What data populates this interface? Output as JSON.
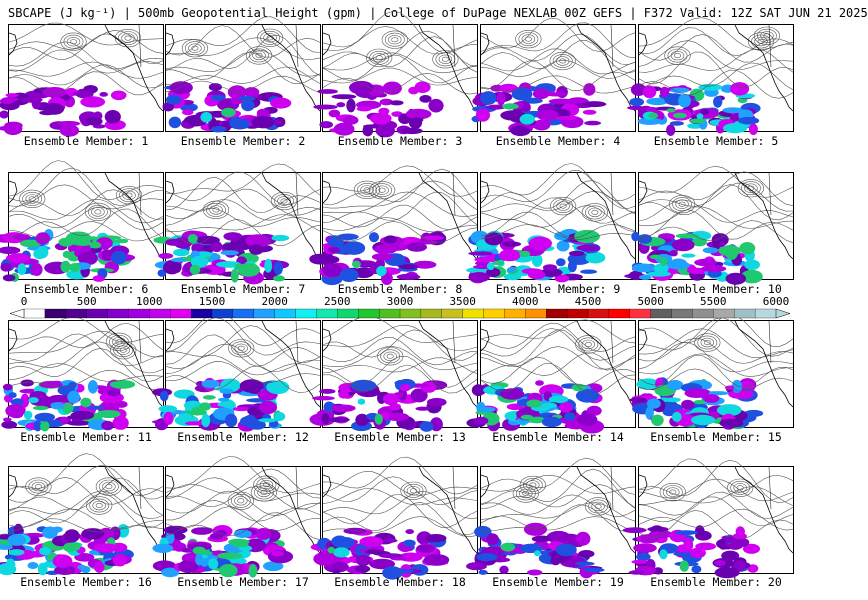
{
  "title": "SBCAPE (J kg⁻¹) | 500mb Geopotential Height (gpm) | College of DuPage NEXLAB 00Z GEFS | F372 Valid: 12Z SAT JUN 21 2025",
  "label_prefix": "Ensemble Member: ",
  "members": [
    {
      "number": "1",
      "cape": "low"
    },
    {
      "number": "2",
      "cape": "medium"
    },
    {
      "number": "3",
      "cape": "low"
    },
    {
      "number": "4",
      "cape": "medium"
    },
    {
      "number": "5",
      "cape": "high"
    },
    {
      "number": "6",
      "cape": "high"
    },
    {
      "number": "7",
      "cape": "high"
    },
    {
      "number": "8",
      "cape": "medium"
    },
    {
      "number": "9",
      "cape": "high"
    },
    {
      "number": "10",
      "cape": "high"
    },
    {
      "number": "11",
      "cape": "high"
    },
    {
      "number": "12",
      "cape": "high"
    },
    {
      "number": "13",
      "cape": "medium"
    },
    {
      "number": "14",
      "cape": "high"
    },
    {
      "number": "15",
      "cape": "high"
    },
    {
      "number": "16",
      "cape": "high"
    },
    {
      "number": "17",
      "cape": "high"
    },
    {
      "number": "18",
      "cape": "medium"
    },
    {
      "number": "19",
      "cape": "medium"
    },
    {
      "number": "20",
      "cape": "medium"
    }
  ],
  "colorbar": {
    "ticks": [
      "0",
      "500",
      "1000",
      "1500",
      "2000",
      "2500",
      "3000",
      "3500",
      "4000",
      "4500",
      "5000",
      "5500",
      "6000"
    ],
    "min": 0,
    "max": 6000,
    "colors": [
      "#ffffff",
      "#3a0070",
      "#520090",
      "#6a00b0",
      "#8400cc",
      "#a000e0",
      "#c000e8",
      "#e000f0",
      "#1a00a0",
      "#1040d0",
      "#1870f0",
      "#20a0ff",
      "#10c8ff",
      "#10f0f0",
      "#10e8b0",
      "#10d870",
      "#20c830",
      "#50c020",
      "#80c020",
      "#a8b820",
      "#c8c020",
      "#f0e000",
      "#ffd000",
      "#ffb000",
      "#ff9000",
      "#a00000",
      "#c00000",
      "#d81010",
      "#ff0000",
      "#ff3040",
      "#606060",
      "#787878",
      "#909090",
      "#a8a8a8",
      "#a0c0c8",
      "#b8d8e0"
    ]
  }
}
